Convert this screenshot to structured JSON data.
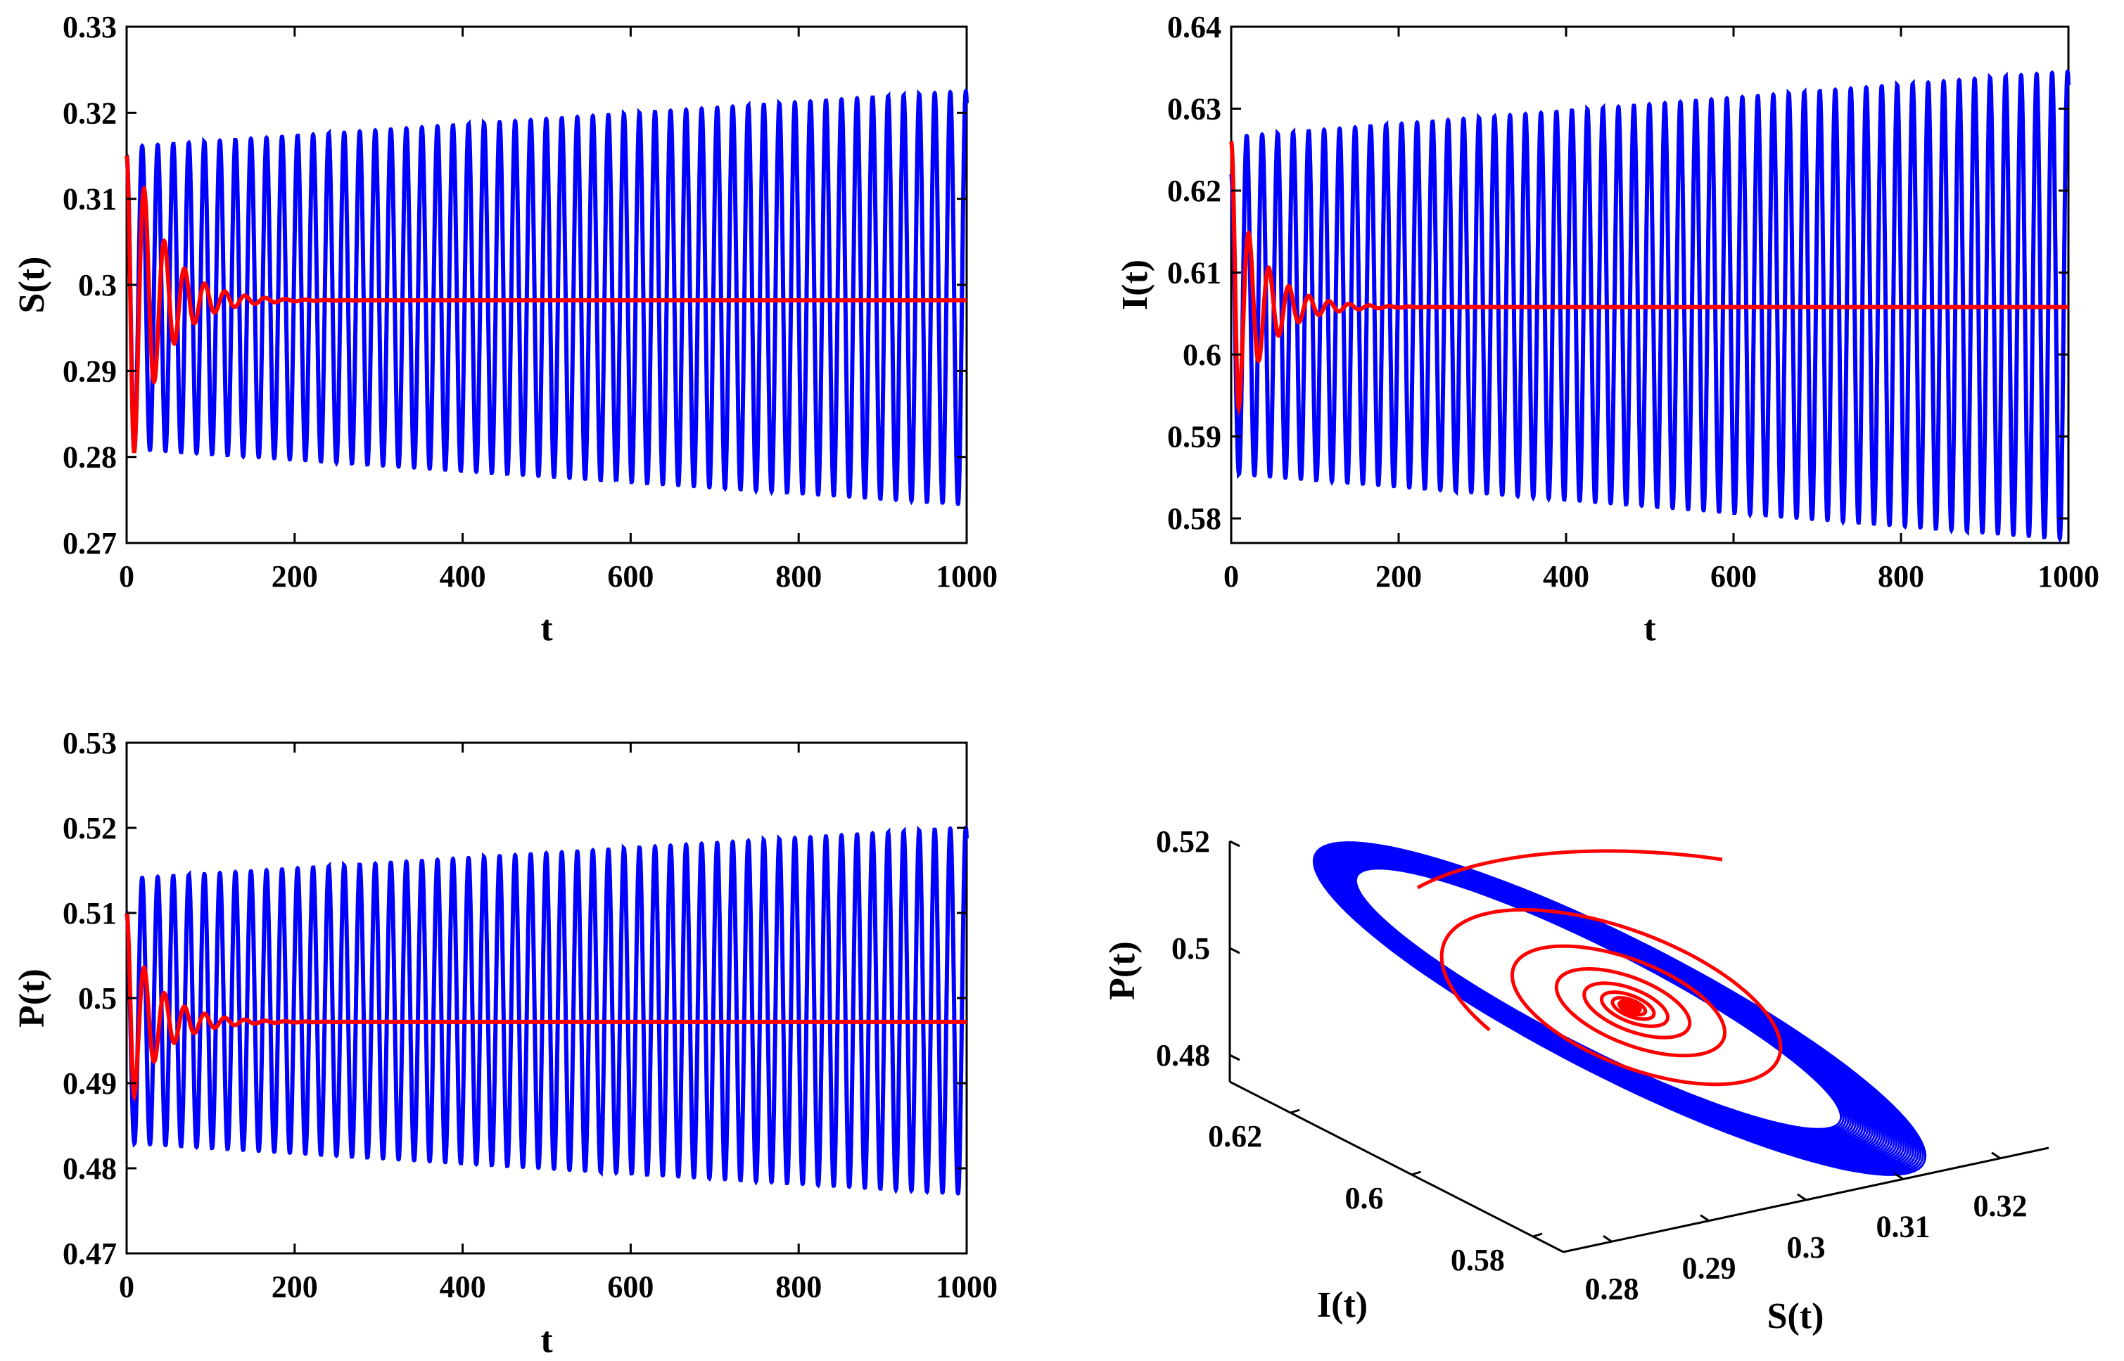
{
  "colors": {
    "oscillation": "#0000ff",
    "stable": "#ff0000",
    "axis": "#000000",
    "background": "#ffffff"
  },
  "chart_data": [
    {
      "id": "S",
      "type": "line",
      "xlabel": "t",
      "ylabel": "S(t)",
      "xlim": [
        0,
        1000
      ],
      "ylim": [
        0.27,
        0.33
      ],
      "xticks": [
        "0",
        "200",
        "400",
        "600",
        "800",
        "1000"
      ],
      "yticks": [
        "0.27",
        "0.28",
        "0.29",
        "0.3",
        "0.31",
        "0.32",
        "0.33"
      ],
      "series": [
        {
          "name": "oscillating",
          "color": "#0000ff",
          "start": 0.315,
          "period": 18.5,
          "amp_start": 0.0175,
          "amp_end": 0.024,
          "center": 0.2985,
          "first_min": 0.2815
        },
        {
          "name": "damped",
          "color": "#ff0000",
          "start": 0.315,
          "equilibrium": 0.2982,
          "period": 24,
          "first_min": 0.2805,
          "decay": 38
        }
      ]
    },
    {
      "id": "I",
      "type": "line",
      "xlabel": "t",
      "ylabel": "I(t)",
      "xlim": [
        0,
        1000
      ],
      "ylim": [
        0.577,
        0.64
      ],
      "xticks": [
        "0",
        "200",
        "400",
        "600",
        "800",
        "1000"
      ],
      "yticks": [
        "0.58",
        "0.59",
        "0.6",
        "0.61",
        "0.62",
        "0.63",
        "0.64"
      ],
      "series": [
        {
          "name": "oscillating",
          "color": "#0000ff",
          "start": 0.622,
          "period": 18.5,
          "amp_start": 0.0205,
          "amp_end": 0.0285,
          "center": 0.606,
          "first_min": 0.5855
        },
        {
          "name": "damped",
          "color": "#ff0000",
          "start": 0.626,
          "equilibrium": 0.6058,
          "period": 24,
          "first_min": 0.5935,
          "decay": 38
        }
      ]
    },
    {
      "id": "P",
      "type": "line",
      "xlabel": "t",
      "ylabel": "P(t)",
      "xlim": [
        0,
        1000
      ],
      "ylim": [
        0.47,
        0.53
      ],
      "xticks": [
        "0",
        "200",
        "400",
        "600",
        "800",
        "1000"
      ],
      "yticks": [
        "0.47",
        "0.48",
        "0.49",
        "0.5",
        "0.51",
        "0.52",
        "0.53"
      ],
      "series": [
        {
          "name": "oscillating",
          "color": "#0000ff",
          "start": 0.51,
          "period": 18.5,
          "amp_start": 0.0155,
          "amp_end": 0.0215,
          "center": 0.4985,
          "first_min": 0.483
        },
        {
          "name": "damped",
          "color": "#ff0000",
          "start": 0.51,
          "equilibrium": 0.4972,
          "period": 24,
          "first_min": 0.4885,
          "decay": 38
        }
      ]
    },
    {
      "id": "phase",
      "type": "line",
      "projection": "3d",
      "xlabel": "S(t)",
      "ylabel": "I(t)",
      "zlabel": "P(t)",
      "xlim": [
        0.275,
        0.325
      ],
      "ylim": [
        0.575,
        0.63
      ],
      "zlim": [
        0.475,
        0.52
      ],
      "xticks": [
        "0.28",
        "0.29",
        "0.3",
        "0.31",
        "0.32"
      ],
      "yticks": [
        "0.58",
        "0.6",
        "0.62"
      ],
      "zticks": [
        "0.48",
        "0.5",
        "0.52"
      ],
      "series": [
        {
          "name": "limit cycle",
          "color": "#0000ff",
          "center": [
            0.2985,
            0.606,
            0.4985
          ]
        },
        {
          "name": "spiral to equilibrium",
          "color": "#ff0000",
          "equilibrium": [
            0.2982,
            0.6058,
            0.4972
          ]
        }
      ]
    }
  ]
}
